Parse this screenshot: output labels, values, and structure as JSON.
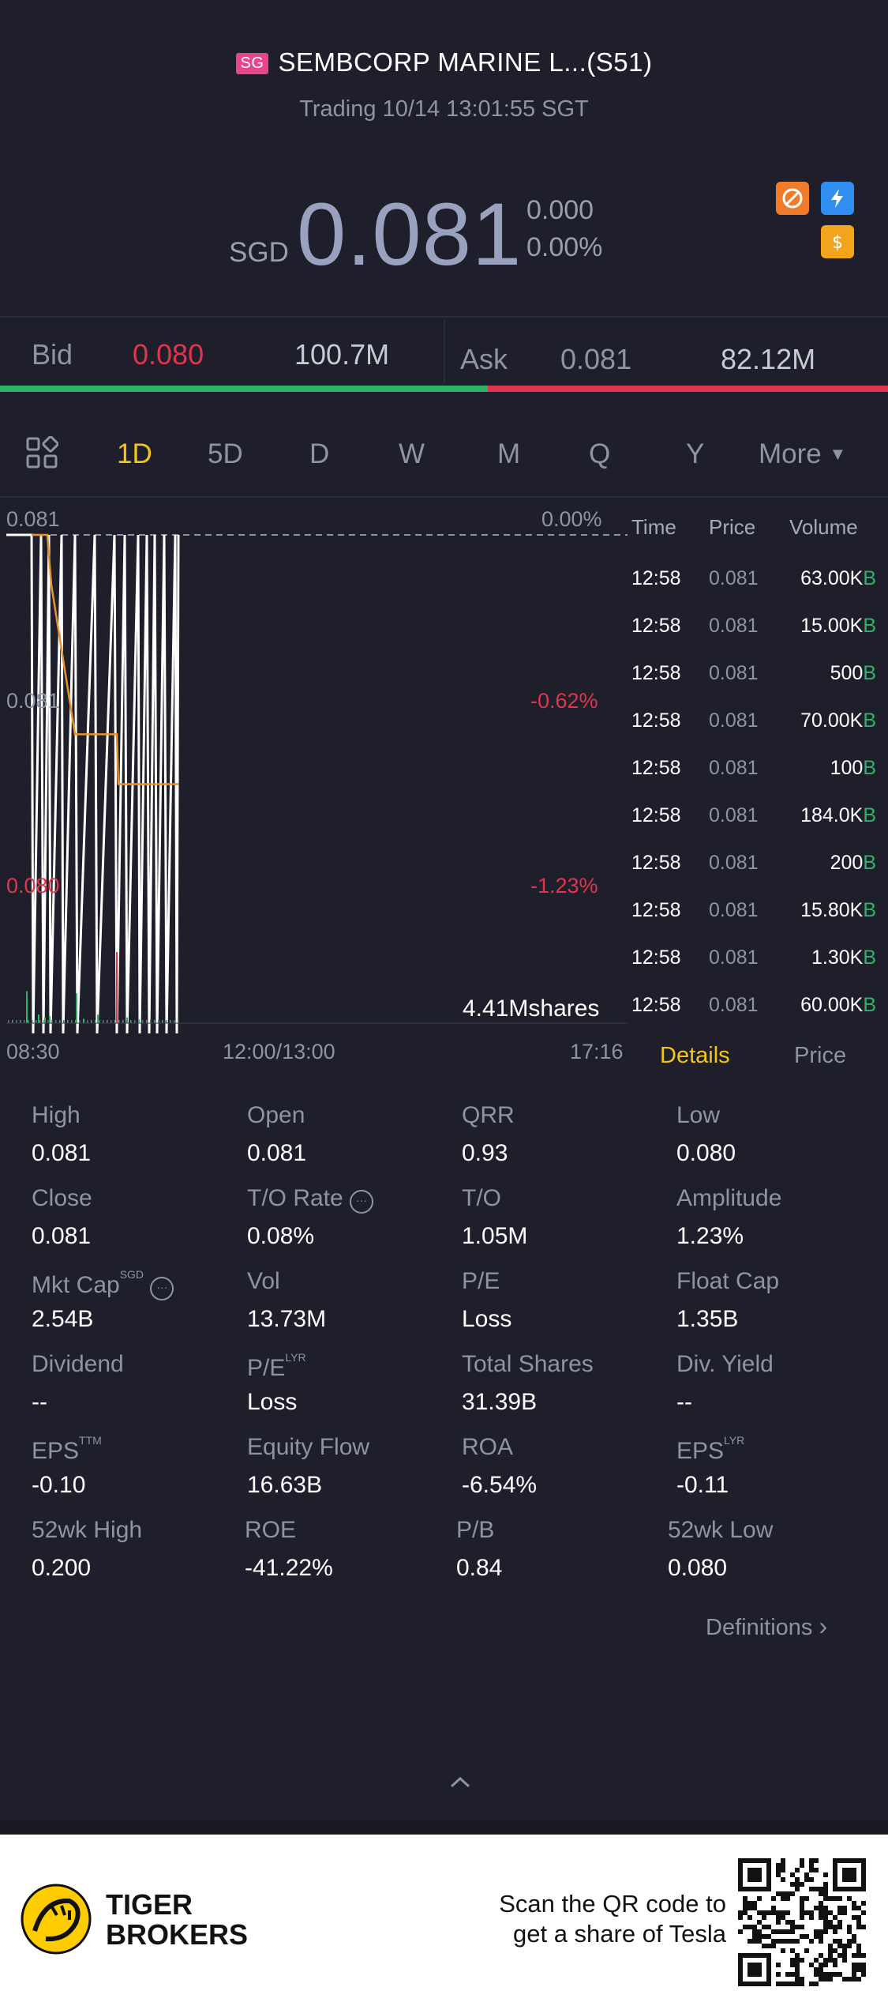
{
  "header": {
    "market_badge": "SG",
    "title": "SEMBCORP MARINE L...(S51)",
    "status": "Trading 10/14 13:01:55 SGT"
  },
  "quote": {
    "currency": "SGD",
    "price": "0.081",
    "change": "0.000",
    "change_pct": "0.00%"
  },
  "bid_ask": {
    "bid_label": "Bid",
    "bid_price": "0.080",
    "bid_size": "100.7M",
    "ask_label": "Ask",
    "ask_price": "0.081",
    "ask_size": "82.12M"
  },
  "period_tabs": [
    "1D",
    "5D",
    "D",
    "W",
    "M",
    "Q",
    "Y"
  ],
  "more_label": "More",
  "chart": {
    "top_price": "0.081",
    "mid_price": "0.081",
    "low_price": "0.080",
    "top_pct": "0.00%",
    "mid_pct": "-0.62%",
    "low_pct": "-1.23%",
    "volume_label": "4.41Mshares",
    "time_start": "08:30",
    "time_mid": "12:00/13:00",
    "time_end": "17:16"
  },
  "chart_data": {
    "type": "line",
    "x_ticks": [
      "08:30",
      "12:00/13:00",
      "17:16"
    ],
    "y_ticks": [
      "0.081",
      "0.081",
      "0.080"
    ],
    "pct_ticks": [
      "0.00%",
      "-0.62%",
      "-1.23%"
    ],
    "series": [
      {
        "values": [
          0.081,
          0.081,
          0.08,
          0.081,
          0.08,
          0.081,
          0.08,
          0.081,
          0.08,
          0.081,
          0.08,
          0.081,
          0.08,
          0.081,
          0.08,
          0.081,
          0.08,
          0.081,
          0.08,
          0.081,
          0.08,
          0.081,
          0.08,
          0.081,
          0.08,
          0.081,
          0.08,
          0.081
        ]
      },
      {
        "values": [
          0.081,
          0.081,
          0.0809,
          0.0806,
          0.0806,
          0.0806,
          0.0806,
          0.0806,
          0.0805,
          0.0805,
          0.0805,
          0.0805
        ]
      }
    ]
  },
  "trades": {
    "headers": [
      "Time",
      "Price",
      "Volume"
    ],
    "rows": [
      {
        "time": "12:58",
        "price": "0.081",
        "volume": "63.00K",
        "side": "B"
      },
      {
        "time": "12:58",
        "price": "0.081",
        "volume": "15.00K",
        "side": "B"
      },
      {
        "time": "12:58",
        "price": "0.081",
        "volume": "500",
        "side": "B"
      },
      {
        "time": "12:58",
        "price": "0.081",
        "volume": "70.00K",
        "side": "B"
      },
      {
        "time": "12:58",
        "price": "0.081",
        "volume": "100",
        "side": "B"
      },
      {
        "time": "12:58",
        "price": "0.081",
        "volume": "184.0K",
        "side": "B"
      },
      {
        "time": "12:58",
        "price": "0.081",
        "volume": "200",
        "side": "B"
      },
      {
        "time": "12:58",
        "price": "0.081",
        "volume": "15.80K",
        "side": "B"
      },
      {
        "time": "12:58",
        "price": "0.081",
        "volume": "1.30K",
        "side": "B"
      },
      {
        "time": "12:58",
        "price": "0.081",
        "volume": "60.00K",
        "side": "B"
      }
    ]
  },
  "detail_tabs": {
    "details": "Details",
    "price": "Price"
  },
  "stats": [
    {
      "label": "High",
      "value": "0.081"
    },
    {
      "label": "Open",
      "value": "0.081"
    },
    {
      "label": "QRR",
      "value": "0.93"
    },
    {
      "label": "Low",
      "value": "0.080"
    },
    {
      "label": "Close",
      "value": "0.081"
    },
    {
      "label": "T/O Rate",
      "value": "0.08%"
    },
    {
      "label": "T/O",
      "value": "1.05M"
    },
    {
      "label": "Amplitude",
      "value": "1.23%"
    },
    {
      "label": "Mkt Cap",
      "value": "2.54B",
      "sup": "SGD"
    },
    {
      "label": "Vol",
      "value": "13.73M"
    },
    {
      "label": "P/E",
      "value": "Loss"
    },
    {
      "label": "Float Cap",
      "value": "1.35B"
    },
    {
      "label": "Dividend",
      "value": "--"
    },
    {
      "label": "P/E",
      "value": "Loss",
      "sup": "LYR"
    },
    {
      "label": "Total Shares",
      "value": "31.39B"
    },
    {
      "label": "Div. Yield",
      "value": "--"
    },
    {
      "label": "EPS",
      "value": "-0.10",
      "sup": "TTM"
    },
    {
      "label": "Equity Flow",
      "value": "16.63B"
    },
    {
      "label": "ROA",
      "value": "-6.54%"
    },
    {
      "label": "EPS",
      "value": "-0.11",
      "sup": "LYR"
    },
    {
      "label": "52wk High",
      "value": "0.200"
    },
    {
      "label": "ROE",
      "value": "-41.22%"
    },
    {
      "label": "P/B",
      "value": "0.84"
    },
    {
      "label": "52wk Low",
      "value": "0.080"
    }
  ],
  "definitions_label": "Definitions",
  "footer": {
    "brand_line1": "TIGER",
    "brand_line2": "BROKERS",
    "promo_line1": "Scan the QR code to",
    "promo_line2": "get a share of Tesla"
  },
  "colors": {
    "background": "#1e1f2a",
    "up": "#2fb36a",
    "down": "#e0364d",
    "accent": "#f5c518",
    "avg_line": "#e8912d"
  }
}
